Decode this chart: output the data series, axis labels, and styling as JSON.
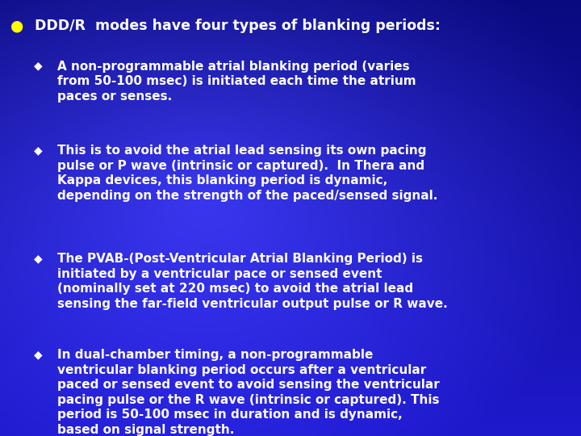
{
  "bg_color_top_left": "#0a0a6e",
  "bg_color_top_right": "#1a1acc",
  "bg_color_bottom_left": "#0000aa",
  "bg_color_bottom_right": "#1010bb",
  "bullet_color": "#ffff00",
  "sub_bullet_color": "#ffffff",
  "text_color": "#ffffff",
  "title_text": "DDD/R  modes have four types of blanking periods:",
  "title_fontsize": 12.5,
  "sub_fontsize": 11.0,
  "bullet1": "A non-programmable atrial blanking period (varies\nfrom 50-100 msec) is initiated each time the atrium\npaces or senses.",
  "bullet2": "This is to avoid the atrial lead sensing its own pacing\npulse or P wave (intrinsic or captured).  In Thera and\nKappa devices, this blanking period is dynamic,\ndepending on the strength of the paced/sensed signal.",
  "bullet3": "The PVAB-(Post-Ventricular Atrial Blanking Period) is\ninitiated by a ventricular pace or sensed event\n(nominally set at 220 msec) to avoid the atrial lead\nsensing the far-field ventricular output pulse or R wave.",
  "bullet4": "In dual-chamber timing, a non-programmable\nventricular blanking period occurs after a ventricular\npaced or sensed event to avoid sensing the ventricular\npacing pulse or the R wave (intrinsic or captured). This\nperiod is 50-100 msec in duration and is dynamic,\nbased on signal strength.",
  "fig_width": 7.2,
  "fig_height": 5.4,
  "dpi": 100
}
